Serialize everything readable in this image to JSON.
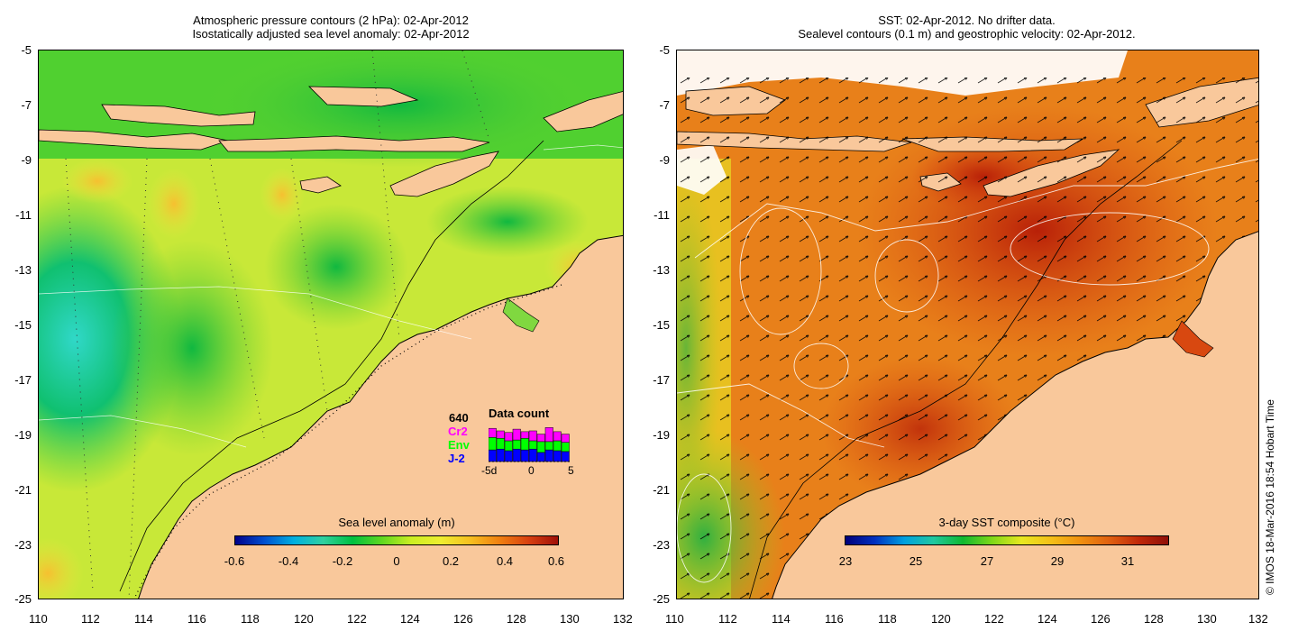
{
  "left_map": {
    "title_line1": "Atmospheric pressure contours (2 hPa): 02-Apr-2012",
    "title_line2": "Isostatically adjusted sea level anomaly: 02-Apr-2012",
    "y_ticks": [
      "-5",
      "-7",
      "-9",
      "-11",
      "-13",
      "-15",
      "-17",
      "-19",
      "-21",
      "-23",
      "-25"
    ],
    "x_ticks": [
      "110",
      "112",
      "114",
      "116",
      "118",
      "120",
      "122",
      "124",
      "126",
      "128",
      "130",
      "132"
    ],
    "colorbar_title": "Sea level anomaly (m)",
    "colorbar_ticks": [
      "-0.6",
      "-0.4",
      "-0.2",
      "0",
      "0.2",
      "0.4",
      "0.6"
    ],
    "legend": {
      "count": "640",
      "title": "Data count",
      "items": [
        {
          "label": "Cr2",
          "color": "#ff00ff"
        },
        {
          "label": "Env",
          "color": "#00ff00"
        },
        {
          "label": "J-2",
          "color": "#0000ff"
        }
      ],
      "axis_labels": [
        "-5d",
        "0",
        "5"
      ],
      "bars": [
        {
          "cr2": 0.22,
          "env": 0.3,
          "j2": 0.28
        },
        {
          "cr2": 0.18,
          "env": 0.26,
          "j2": 0.3
        },
        {
          "cr2": 0.2,
          "env": 0.24,
          "j2": 0.26
        },
        {
          "cr2": 0.26,
          "env": 0.22,
          "j2": 0.3
        },
        {
          "cr2": 0.16,
          "env": 0.28,
          "j2": 0.28
        },
        {
          "cr2": 0.24,
          "env": 0.2,
          "j2": 0.3
        },
        {
          "cr2": 0.18,
          "env": 0.26,
          "j2": 0.22
        },
        {
          "cr2": 0.34,
          "env": 0.2,
          "j2": 0.28
        },
        {
          "cr2": 0.22,
          "env": 0.24,
          "j2": 0.26
        },
        {
          "cr2": 0.2,
          "env": 0.22,
          "j2": 0.24
        }
      ]
    }
  },
  "right_map": {
    "title_line1": "SST: 02-Apr-2012. No drifter data.",
    "title_line2": "Sealevel contours (0.1 m) and geostrophic velocity: 02-Apr-2012.",
    "y_ticks": [
      "-5",
      "-7",
      "-9",
      "-11",
      "-13",
      "-15",
      "-17",
      "-19",
      "-21",
      "-23",
      "-25"
    ],
    "x_ticks": [
      "110",
      "112",
      "114",
      "116",
      "118",
      "120",
      "122",
      "124",
      "126",
      "128",
      "130",
      "132"
    ],
    "colorbar_title": "3-day SST composite (°C)",
    "colorbar_ticks": [
      "23",
      "25",
      "27",
      "29",
      "31"
    ]
  },
  "credit": "© IMOS 18-Mar-2016 18:54 Hobart Time",
  "colors": {
    "land": "#f9c89b",
    "sla_ramp": [
      "#00008b",
      "#0050d0",
      "#00b0e0",
      "#30d0a0",
      "#00c040",
      "#60d820",
      "#ccee22",
      "#eeee30",
      "#f6c020",
      "#f08010",
      "#d84010",
      "#a01008"
    ],
    "sst_ramp": [
      "#00007a",
      "#0030c0",
      "#00a0e0",
      "#20c8a0",
      "#10b830",
      "#80d818",
      "#e8e820",
      "#f4c018",
      "#f09010",
      "#e06010",
      "#c02808",
      "#901008"
    ]
  }
}
